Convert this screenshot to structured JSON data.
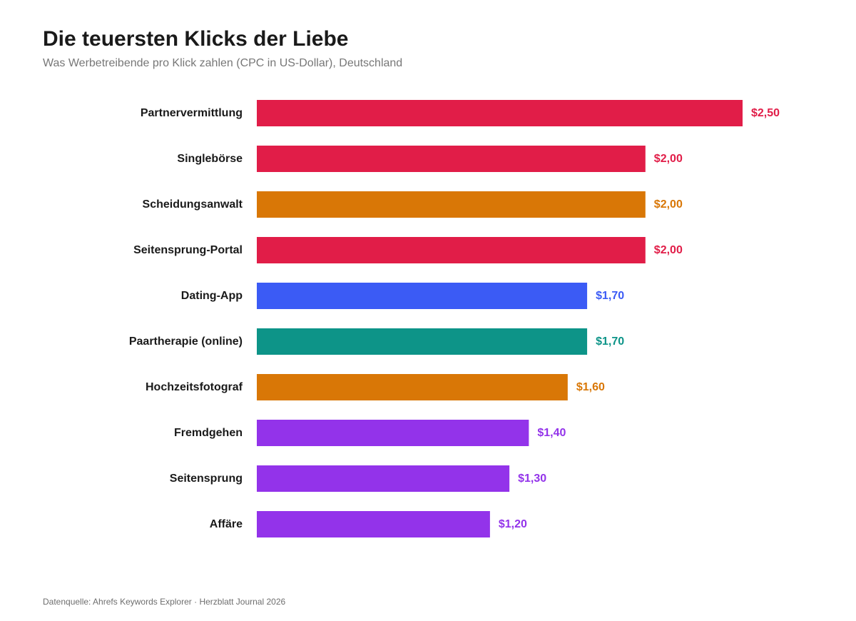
{
  "header": {
    "title": "Die teuersten Klicks der Liebe",
    "subtitle": "Was Werbetreibende pro Klick zahlen (CPC in US-Dollar), Deutschland"
  },
  "footer": {
    "source": "Datenquelle: Ahrefs Keywords Explorer · Herzblatt Journal 2026"
  },
  "chart_data": {
    "type": "bar",
    "orientation": "horizontal",
    "title": "Die teuersten Klicks der Liebe",
    "subtitle": "Was Werbetreibende pro Klick zahlen (CPC in US-Dollar), Deutschland",
    "categories": [
      "Partnervermittlung",
      "Singlebörse",
      "Scheidungsanwalt",
      "Seitensprung-Portal",
      "Dating-App",
      "Paartherapie (online)",
      "Hochzeitsfotograf",
      "Fremdgehen",
      "Seitensprung",
      "Affäre"
    ],
    "values": [
      2.5,
      2.0,
      2.0,
      2.0,
      1.7,
      1.7,
      1.6,
      1.4,
      1.3,
      1.2
    ],
    "value_labels": [
      "$2,50",
      "$2,00",
      "$2,00",
      "$2,00",
      "$1,70",
      "$1,70",
      "$1,60",
      "$1,40",
      "$1,30",
      "$1,20"
    ],
    "colors": [
      "#e11d48",
      "#e11d48",
      "#d97706",
      "#e11d48",
      "#3b5bf5",
      "#0d9488",
      "#d97706",
      "#9333ea",
      "#9333ea",
      "#9333ea"
    ],
    "xlim": [
      0,
      2.5
    ],
    "grid": false,
    "legend": "none"
  }
}
